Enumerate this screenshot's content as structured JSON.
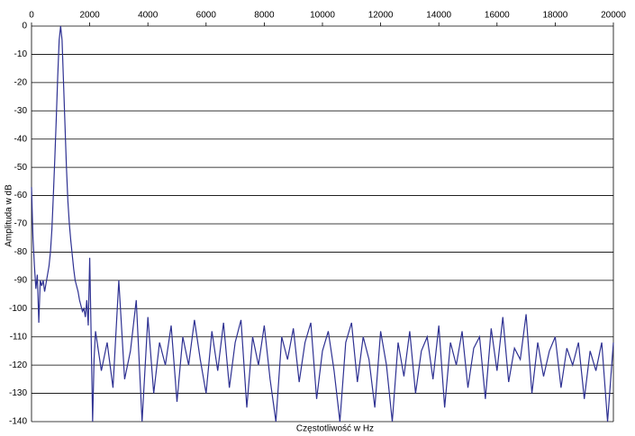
{
  "chart_data": {
    "type": "line",
    "x_label": "Częstotliwość w Hz",
    "y_label": "Amplituda w dB",
    "x": [
      0,
      50,
      100,
      150,
      200,
      250,
      300,
      350,
      400,
      450,
      500,
      550,
      600,
      650,
      700,
      750,
      800,
      850,
      900,
      950,
      1000,
      1050,
      1100,
      1150,
      1200,
      1250,
      1300,
      1350,
      1400,
      1450,
      1500,
      1550,
      1600,
      1650,
      1700,
      1750,
      1800,
      1850,
      1900,
      1950,
      2000,
      2050,
      2100,
      2150,
      2200,
      2400,
      2600,
      2800,
      3000,
      3200,
      3400,
      3600,
      3800,
      4000,
      4200,
      4400,
      4600,
      4800,
      5000,
      5200,
      5400,
      5600,
      5800,
      6000,
      6200,
      6400,
      6600,
      6800,
      7000,
      7200,
      7400,
      7600,
      7800,
      8000,
      8200,
      8400,
      8600,
      8800,
      9000,
      9200,
      9400,
      9600,
      9800,
      10000,
      10200,
      10400,
      10600,
      10800,
      11000,
      11200,
      11400,
      11600,
      11800,
      12000,
      12200,
      12400,
      12600,
      12800,
      13000,
      13200,
      13400,
      13600,
      13800,
      14000,
      14200,
      14400,
      14600,
      14800,
      15000,
      15200,
      15400,
      15600,
      15800,
      16000,
      16200,
      16400,
      16600,
      16800,
      17000,
      17200,
      17400,
      17600,
      17800,
      18000,
      18200,
      18400,
      18600,
      18800,
      19000,
      19200,
      19400,
      19600,
      19800,
      20000
    ],
    "series": [
      {
        "color": "#2e3192",
        "values": [
          -57,
          -75,
          -85,
          -93,
          -88,
          -105,
          -90,
          -92,
          -90,
          -94,
          -91,
          -88,
          -85,
          -80,
          -72,
          -60,
          -47,
          -33,
          -18,
          -5,
          0,
          -5,
          -20,
          -35,
          -50,
          -62,
          -70,
          -76,
          -81,
          -86,
          -90,
          -92,
          -94,
          -97,
          -99,
          -101,
          -100,
          -103,
          -97,
          -106,
          -82,
          -110,
          -140,
          -118,
          -108,
          -122,
          -112,
          -128,
          -90,
          -125,
          -115,
          -97,
          -140,
          -103,
          -130,
          -112,
          -120,
          -106,
          -133,
          -110,
          -120,
          -104,
          -118,
          -130,
          -108,
          -122,
          -105,
          -128,
          -112,
          -104,
          -135,
          -110,
          -120,
          -106,
          -125,
          -140,
          -110,
          -118,
          -107,
          -126,
          -112,
          -105,
          -132,
          -115,
          -108,
          -122,
          -140,
          -112,
          -105,
          -126,
          -110,
          -118,
          -135,
          -108,
          -120,
          -140,
          -112,
          -124,
          -108,
          -130,
          -115,
          -110,
          -125,
          -106,
          -135,
          -112,
          -120,
          -108,
          -128,
          -114,
          -110,
          -132,
          -107,
          -122,
          -103,
          -126,
          -114,
          -118,
          -102,
          -130,
          -112,
          -124,
          -115,
          -110,
          -128,
          -114,
          -120,
          -112,
          -132,
          -115,
          -122,
          -112,
          -140,
          -112
        ]
      }
    ],
    "xlim": [
      0,
      20000
    ],
    "xticks": [
      0,
      2000,
      4000,
      6000,
      8000,
      10000,
      12000,
      14000,
      16000,
      18000,
      20000
    ],
    "ylim": [
      -140,
      0
    ],
    "yticks": [
      0,
      -10,
      -20,
      -30,
      -40,
      -50,
      -60,
      -70,
      -80,
      -90,
      -100,
      -110,
      -120,
      -130,
      -140
    ],
    "grid": true
  }
}
